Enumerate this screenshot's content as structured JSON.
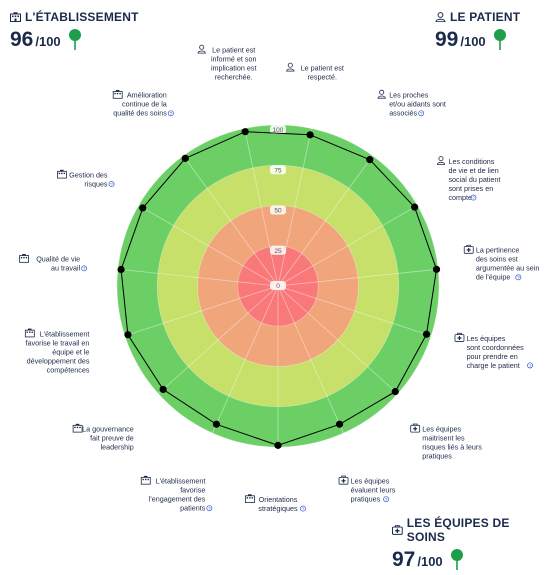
{
  "scores": {
    "etablissement": {
      "icon": "building-icon",
      "title": "L'ÉTABLISSEMENT",
      "value": "96",
      "max": "/100",
      "status_color": "#1e9e4a"
    },
    "patient": {
      "icon": "person-icon",
      "title": "LE PATIENT",
      "value": "99",
      "max": "/100",
      "status_color": "#1e9e4a"
    },
    "equipes": {
      "icon": "medical-kit-icon",
      "title": "LES ÉQUIPES DE SOINS",
      "value": "97",
      "max": "/100",
      "status_color": "#1e9e4a"
    }
  },
  "colors": {
    "band_100": "#6ccf66",
    "band_75": "#c6e06a",
    "band_50": "#f0a57a",
    "band_25": "#f9797a",
    "line": "#000000"
  },
  "chart_data": {
    "type": "radar",
    "rlim": [
      0,
      100
    ],
    "ticks": [
      "0",
      "25",
      "50",
      "75",
      "100"
    ],
    "axes": [
      {
        "lines": [
          "Le patient est",
          "respecté."
        ],
        "icon": "person-icon",
        "help": false,
        "value": 96
      },
      {
        "lines": [
          "Les proches",
          "et/ou aidants sont",
          "associés"
        ],
        "icon": "person-icon",
        "help": true,
        "value": 97
      },
      {
        "lines": [
          "Les conditions",
          "de vie et de lien",
          "social du patient",
          "sont prises en",
          "compte"
        ],
        "icon": "person-icon",
        "help": true,
        "value": 98
      },
      {
        "lines": [
          "La pertinence",
          "des soins est",
          "argumentée au sein",
          "de l'équipe"
        ],
        "icon": "medical-kit-icon",
        "help": true,
        "value": 99
      },
      {
        "lines": [
          "Les équipes",
          "sont coordonnées",
          "pour prendre en",
          "charge le patient"
        ],
        "icon": "medical-kit-icon",
        "help": true,
        "value": 97
      },
      {
        "lines": [
          "Les équipes",
          "maitrisent les",
          "risques liés à leurs",
          "pratiques"
        ],
        "icon": "medical-kit-icon",
        "help": false,
        "value": 98
      },
      {
        "lines": [
          "Les équipes",
          "évaluent leurs",
          "pratiques"
        ],
        "icon": "medical-kit-icon",
        "help": true,
        "value": 94
      },
      {
        "lines": [
          "Orientations",
          "stratégiques"
        ],
        "icon": "building-icon",
        "help": true,
        "value": 99
      },
      {
        "lines": [
          "L'établissement",
          "favorise",
          "l'engagement des",
          "patients"
        ],
        "icon": "building-icon",
        "help": true,
        "value": 94
      },
      {
        "lines": [
          "La gouvernance",
          "fait preuve de",
          "leadership"
        ],
        "icon": "building-icon",
        "help": false,
        "value": 96
      },
      {
        "lines": [
          "L'établissement",
          "favorise le travail en",
          "équipe et le",
          "développement des",
          "compétences"
        ],
        "icon": "building-icon",
        "help": false,
        "value": 98
      },
      {
        "lines": [
          "Qualité de vie",
          "au travail"
        ],
        "icon": "building-icon",
        "help": true,
        "value": 98
      },
      {
        "lines": [
          "Gestion des",
          "risques"
        ],
        "icon": "building-icon",
        "help": true,
        "value": 97
      },
      {
        "lines": [
          "Amélioration",
          "continue de la",
          "qualité des soins"
        ],
        "icon": "building-icon",
        "help": true,
        "value": 98
      },
      {
        "lines": [
          "Le patient est",
          "informé et son",
          "implication est",
          "recherchée."
        ],
        "icon": "person-icon",
        "help": false,
        "value": 98
      }
    ]
  }
}
